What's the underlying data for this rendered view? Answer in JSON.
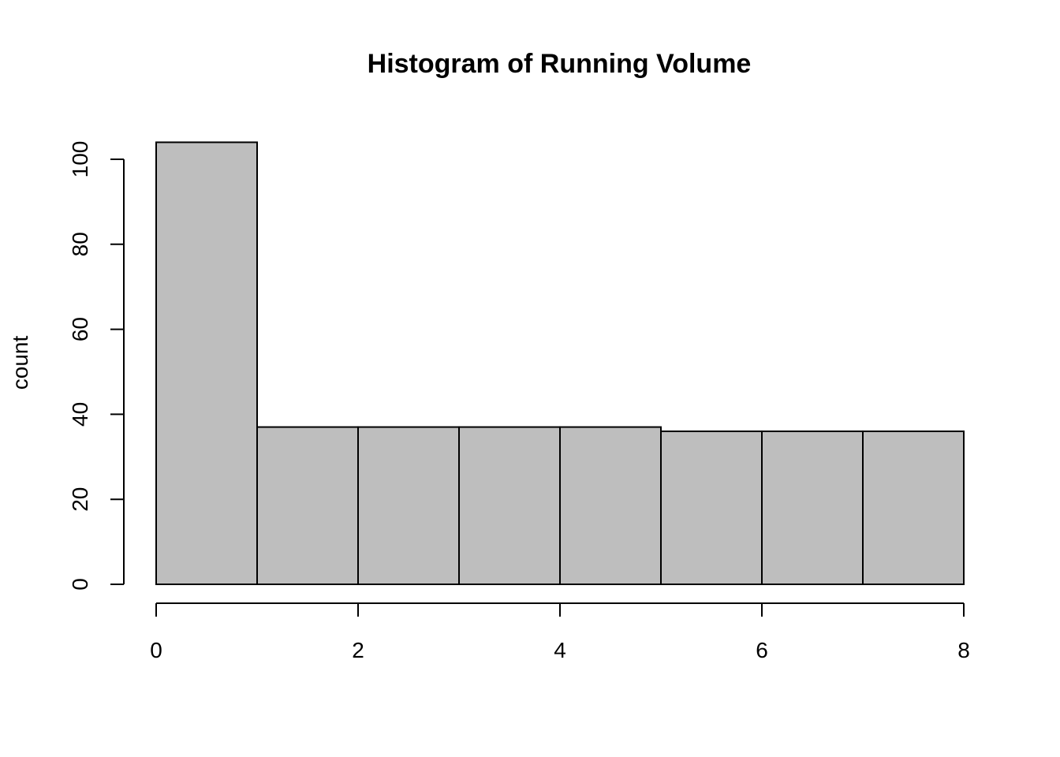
{
  "chart_data": {
    "type": "bar",
    "title": "Histogram of Running Volume",
    "xlabel": "",
    "ylabel": "count",
    "bins": [
      {
        "start": 0,
        "end": 1,
        "count": 104
      },
      {
        "start": 1,
        "end": 2,
        "count": 37
      },
      {
        "start": 2,
        "end": 3,
        "count": 37
      },
      {
        "start": 3,
        "end": 4,
        "count": 37
      },
      {
        "start": 4,
        "end": 5,
        "count": 37
      },
      {
        "start": 5,
        "end": 6,
        "count": 36
      },
      {
        "start": 6,
        "end": 7,
        "count": 36
      },
      {
        "start": 7,
        "end": 8,
        "count": 36
      }
    ],
    "xlim": [
      0,
      8
    ],
    "ylim": [
      0,
      104
    ],
    "x_ticks": [
      0,
      2,
      4,
      6,
      8
    ],
    "x_tick_labels": [
      "0",
      "2",
      "4",
      "6",
      "8"
    ],
    "y_ticks": [
      0,
      20,
      40,
      60,
      80,
      100
    ],
    "y_tick_labels": [
      "0",
      "20",
      "40",
      "60",
      "80",
      "100"
    ],
    "bar_fill": "#bebebe",
    "bar_edge": "#000000",
    "grid": false,
    "legend": "none"
  }
}
